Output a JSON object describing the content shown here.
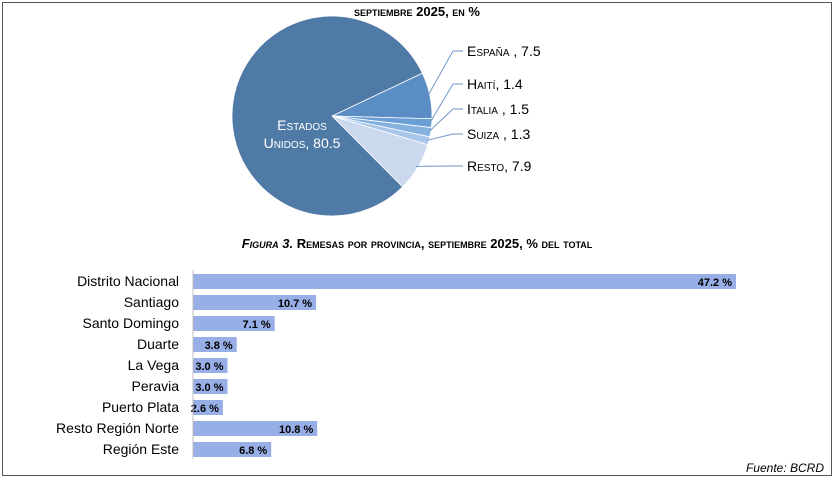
{
  "pie_title": "septiembre 2025, en %",
  "figure_title": {
    "number": "Figura 3.",
    "text": "Remesas por provincia, septiembre 2025, % del total"
  },
  "source": "Fuente: BCRD",
  "colors": {
    "pie": [
      "#4f7aa6",
      "#5a8dc4",
      "#6a9fd6",
      "#86b2e0",
      "#a8c6ea",
      "#cbd9ef"
    ],
    "bar": "#98aee6",
    "leader": "#6f96c9"
  },
  "chart_data": [
    {
      "type": "pie",
      "slices": [
        {
          "name": "Estados Unidos",
          "value": 80.5,
          "label_lines": [
            "Estados",
            "Unidos, 80.5"
          ]
        },
        {
          "name": "España",
          "value": 7.5,
          "label": "España , 7.5"
        },
        {
          "name": "Haití",
          "value": 1.4,
          "label": "Haití, 1.4"
        },
        {
          "name": "Italia",
          "value": 1.5,
          "label": "Italia , 1.5"
        },
        {
          "name": "Suiza",
          "value": 1.3,
          "label": "Suiza , 1.3"
        },
        {
          "name": "Resto",
          "value": 7.9,
          "label": "Resto, 7.9"
        }
      ]
    },
    {
      "type": "bar",
      "orientation": "horizontal",
      "categories": [
        "Distrito Nacional",
        "Santiago",
        "Santo Domingo",
        "Duarte",
        "La Vega",
        "Peravia",
        "Puerto Plata",
        "Resto Región Norte",
        "Región Este"
      ],
      "values": [
        47.2,
        10.7,
        7.1,
        3.8,
        3.0,
        3.0,
        2.6,
        10.8,
        6.8
      ],
      "value_labels": [
        "47.2 %",
        "10.7 %",
        "7.1 %",
        "3.8 %",
        "3.0 %",
        "3.0 %",
        "2.6 %",
        "10.8 %",
        "6.8 %"
      ]
    }
  ]
}
